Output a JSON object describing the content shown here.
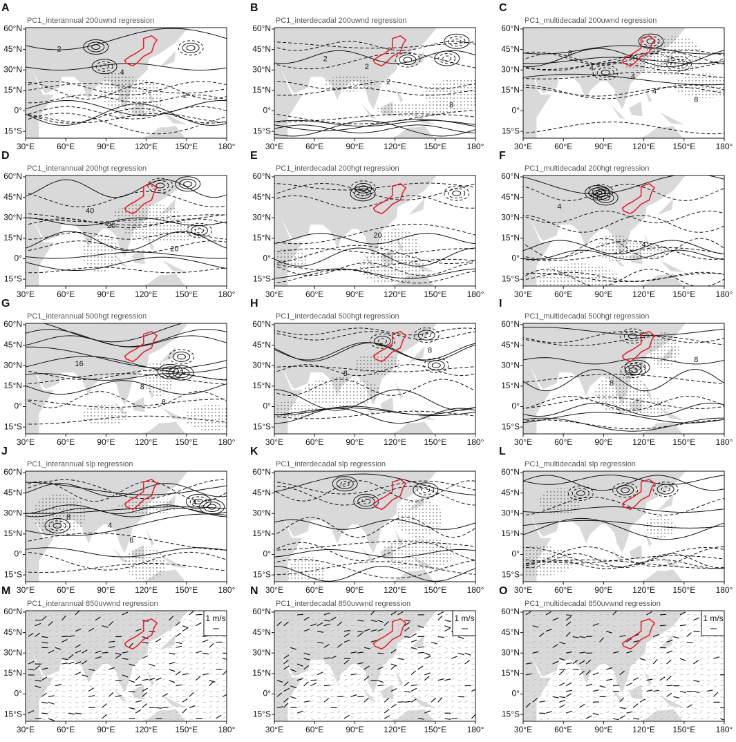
{
  "panels": [
    {
      "letter": "A",
      "title": "PC1_interannual 200uwnd regression",
      "labels": [
        "2",
        "4",
        "2"
      ]
    },
    {
      "letter": "B",
      "title": "PC1_interdecadal 200uwnd regression",
      "labels": [
        "2",
        "2",
        "8",
        "2"
      ]
    },
    {
      "letter": "C",
      "title": "PC1_multidecadal 200uwnd regression",
      "labels": [
        "4",
        "4",
        "8",
        "4",
        "8"
      ]
    },
    {
      "letter": "D",
      "title": "PC1_interannual 200hgt regression",
      "labels": [
        "20",
        "20",
        "40"
      ]
    },
    {
      "letter": "E",
      "title": "PC1_interdecadal 200hgt regression",
      "labels": [
        "20"
      ]
    },
    {
      "letter": "F",
      "title": "PC1_multidecadal 200hgt regression",
      "labels": [
        "4",
        "4"
      ]
    },
    {
      "letter": "G",
      "title": "PC1_interannual 500hgt regression",
      "labels": [
        "8",
        "16",
        "8"
      ]
    },
    {
      "letter": "H",
      "title": "PC1_interdecadal 500hgt regression",
      "labels": [
        "8",
        "8"
      ]
    },
    {
      "letter": "I",
      "title": "PC1_multidecadal 500hgt regression",
      "labels": [
        "8",
        "8"
      ]
    },
    {
      "letter": "J",
      "title": "PC1_interannual slp regression",
      "labels": [
        "8",
        "8",
        "4",
        "4"
      ]
    },
    {
      "letter": "K",
      "title": "PC1_interdecadal slp regression",
      "labels": []
    },
    {
      "letter": "L",
      "title": "PC1_multidecadal slp regression",
      "labels": []
    },
    {
      "letter": "M",
      "title": "PC1_interannual 850uvwnd regression",
      "labels": [],
      "legend": "1 m/s"
    },
    {
      "letter": "N",
      "title": "PC1_interdecadal 850uvwnd regression",
      "labels": [],
      "legend": "1 m/s"
    },
    {
      "letter": "O",
      "title": "PC1_multidecadal 850uvwnd regression",
      "labels": [],
      "legend": "1 m/s"
    }
  ],
  "lon_labels": [
    "30°E",
    "60°E",
    "90°E",
    "120°E",
    "150°E",
    "180°"
  ],
  "lat_labels": [
    "60°N",
    "45°N",
    "30°N",
    "15°N",
    "0°",
    "15°S"
  ]
}
